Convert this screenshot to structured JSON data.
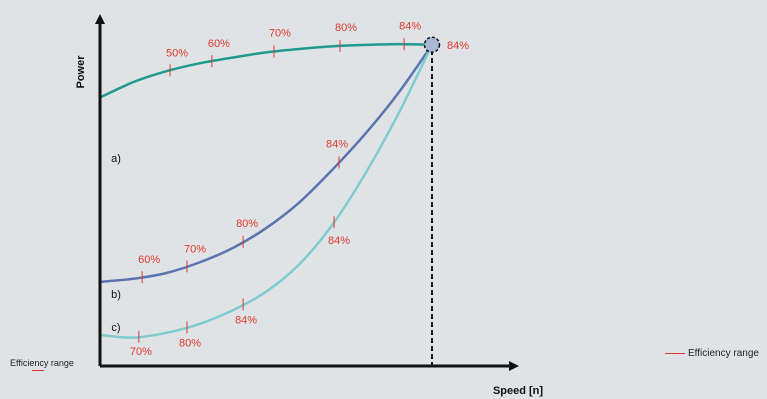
{
  "chart_data": {
    "type": "line",
    "title": "",
    "xlabel": "Speed [n]",
    "ylabel": "Power",
    "xlim": [
      0,
      1
    ],
    "ylim": [
      0,
      1
    ],
    "grid": false,
    "colors": {
      "accent": "#e0392b",
      "axis": "#111111",
      "series_a": "#1e9a8e",
      "series_b": "#5b74b0",
      "series_c": "#7ecbd0",
      "operating_point_fill": "#a8b8d4"
    },
    "series": [
      {
        "label": "a)",
        "points": [
          [
            0.0,
            0.785
          ],
          [
            0.1,
            0.83
          ],
          [
            0.2,
            0.862
          ],
          [
            0.3,
            0.885
          ],
          [
            0.4,
            0.902
          ],
          [
            0.5,
            0.917
          ],
          [
            0.6,
            0.927
          ],
          [
            0.7,
            0.935
          ],
          [
            0.8,
            0.939
          ],
          [
            0.9,
            0.941
          ],
          [
            1.0,
            0.9392
          ]
        ],
        "markers": [
          {
            "x": 0.211,
            "value": "50%"
          },
          {
            "x": 0.337,
            "value": "60%"
          },
          {
            "x": 0.524,
            "value": "70%"
          },
          {
            "x": 0.723,
            "value": "80%"
          },
          {
            "x": 0.916,
            "value": "84%"
          }
        ]
      },
      {
        "label": "b)",
        "points": [
          [
            0.0,
            0.246
          ],
          [
            0.1,
            0.255
          ],
          [
            0.2,
            0.272
          ],
          [
            0.3,
            0.303
          ],
          [
            0.4,
            0.345
          ],
          [
            0.5,
            0.403
          ],
          [
            0.6,
            0.478
          ],
          [
            0.7,
            0.574
          ],
          [
            0.8,
            0.68
          ],
          [
            0.9,
            0.8
          ],
          [
            1.0,
            0.9392
          ]
        ],
        "markers": [
          {
            "x": 0.127,
            "value": "60%"
          },
          {
            "x": 0.262,
            "value": "70%"
          },
          {
            "x": 0.431,
            "value": "80%"
          },
          {
            "x": 0.72,
            "value": "84%"
          }
        ]
      },
      {
        "label": "c)",
        "points": [
          [
            0.0,
            0.091
          ],
          [
            0.1,
            0.083
          ],
          [
            0.2,
            0.097
          ],
          [
            0.3,
            0.123
          ],
          [
            0.4,
            0.163
          ],
          [
            0.5,
            0.217
          ],
          [
            0.6,
            0.297
          ],
          [
            0.7,
            0.413
          ],
          [
            0.8,
            0.564
          ],
          [
            0.9,
            0.74
          ],
          [
            1.0,
            0.9392
          ]
        ],
        "markers": [
          {
            "x": 0.117,
            "value": "70%"
          },
          {
            "x": 0.262,
            "value": "80%"
          },
          {
            "x": 0.431,
            "value": "84%"
          },
          {
            "x": 0.705,
            "value": "84%"
          }
        ]
      }
    ],
    "operating_point": {
      "x": 1.0,
      "y": 0.9392,
      "value": "84%"
    },
    "limit_line": {
      "x": 1.0,
      "style": "dashed"
    },
    "legend": {
      "left_label": "Efficiency range",
      "right_label": "Efficiency range"
    }
  }
}
